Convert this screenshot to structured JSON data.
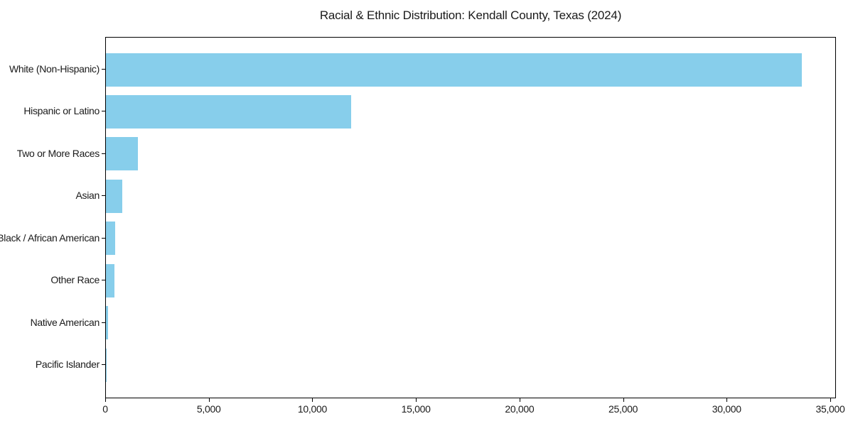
{
  "chart_data": {
    "type": "bar",
    "orientation": "horizontal",
    "title": "Racial & Ethnic Distribution: Kendall County, Texas (2024)",
    "categories": [
      "White (Non-Hispanic)",
      "Hispanic or Latino",
      "Two or More Races",
      "Asian",
      "Black / African American",
      "Other Race",
      "Native American",
      "Pacific Islander"
    ],
    "values": [
      33600,
      11850,
      1550,
      790,
      450,
      410,
      100,
      25
    ],
    "xlabel": "",
    "ylabel": "",
    "xlim": [
      0,
      35275
    ],
    "xticks": [
      0,
      5000,
      10000,
      15000,
      20000,
      25000,
      30000,
      35000
    ],
    "xtick_labels": [
      "0",
      "5,000",
      "10,000",
      "15,000",
      "20,000",
      "25,000",
      "30,000",
      "35,000"
    ],
    "grid": false,
    "legend": "none",
    "bar_color": "#87CEEB",
    "axis_color": "#000000",
    "background_color": "#ffffff"
  }
}
